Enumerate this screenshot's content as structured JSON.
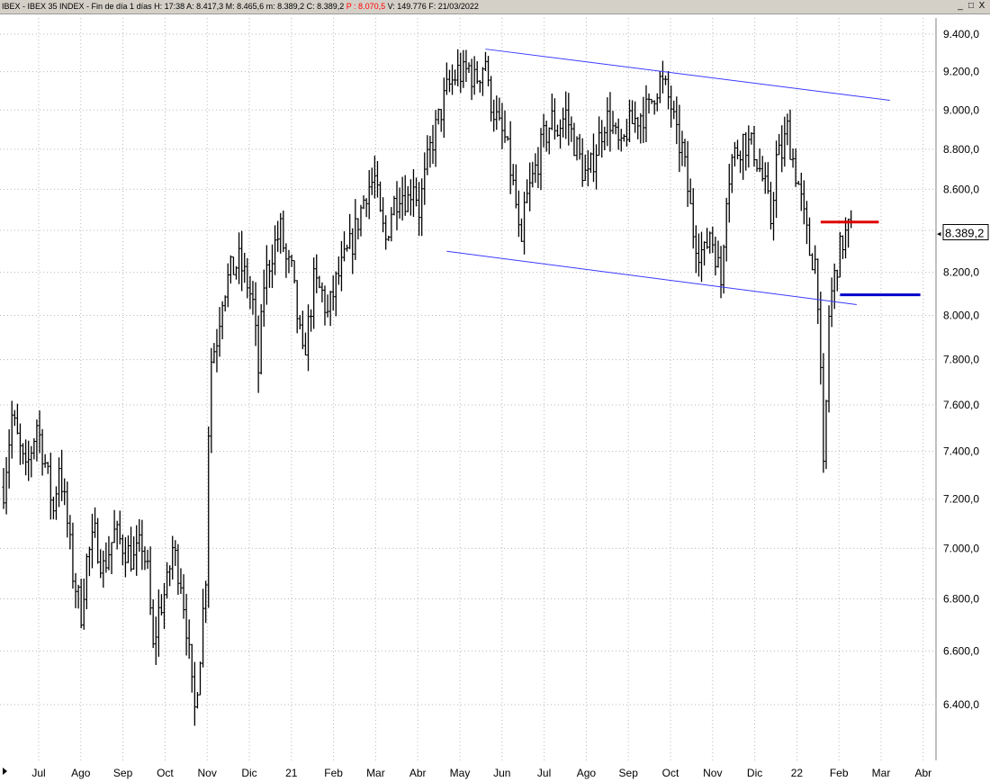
{
  "window": {
    "title_parts": {
      "prefix": " IBEX - IBEX 35 INDEX - Fin de día 1 días  H: 17:38  A: 8.417,3  M: 8.465,6  m: 8.389,2  C: 8.389,2  ",
      "p_value": "P : 8.070,5",
      "suffix": "  V: 149.776  F: 21/03/2022"
    },
    "buttons": {
      "minimize": "_",
      "maximize": "□",
      "close": "X"
    },
    "marker_icon": "right-triangle-icon"
  },
  "chart_data": {
    "type": "ohlc",
    "y_axis": {
      "ticks": [
        "9.400,0",
        "9.200,0",
        "9.000,0",
        "8.800,0",
        "8.600,0",
        "8.400,0",
        "8.200,0",
        "8.000,0",
        "7.800,0",
        "7.600,0",
        "7.400,0",
        "7.200,0",
        "7.000,0",
        "6.800,0",
        "6.600,0",
        "6.400,0"
      ],
      "log_scale": true,
      "range": [
        6300,
        9450
      ],
      "last_price_label": "8.389,2"
    },
    "x_axis": {
      "labels": [
        "Jul",
        "Ago",
        "Sep",
        "Oct",
        "Nov",
        "Dic",
        "21",
        "Feb",
        "Mar",
        "Abr",
        "May",
        "Jun",
        "Jul",
        "Ago",
        "Sep",
        "Oct",
        "Nov",
        "Dic",
        "22",
        "Feb",
        "Mar",
        "Abr"
      ]
    },
    "grid": true,
    "price_path": [
      [
        0,
        7250
      ],
      [
        3,
        7550
      ],
      [
        6,
        7400
      ],
      [
        8,
        7300
      ],
      [
        12,
        7520
      ],
      [
        15,
        7350
      ],
      [
        18,
        7150
      ],
      [
        20,
        7350
      ],
      [
        23,
        7100
      ],
      [
        25,
        6900
      ],
      [
        28,
        6750
      ],
      [
        30,
        6950
      ],
      [
        33,
        7050
      ],
      [
        36,
        6920
      ],
      [
        40,
        7060
      ],
      [
        44,
        7000
      ],
      [
        47,
        6950
      ],
      [
        50,
        7020
      ],
      [
        52,
        6900
      ],
      [
        54,
        6600
      ],
      [
        56,
        6750
      ],
      [
        59,
        6850
      ],
      [
        61,
        7000
      ],
      [
        64,
        6880
      ],
      [
        66,
        6700
      ],
      [
        68,
        6450
      ],
      [
        69,
        6380
      ],
      [
        71,
        6600
      ],
      [
        73,
        6900
      ],
      [
        74,
        7500
      ],
      [
        75,
        7800
      ],
      [
        77,
        7900
      ],
      [
        79,
        8100
      ],
      [
        82,
        8200
      ],
      [
        85,
        8250
      ],
      [
        88,
        8150
      ],
      [
        90,
        8050
      ],
      [
        92,
        7750
      ],
      [
        94,
        8150
      ],
      [
        97,
        8300
      ],
      [
        100,
        8400
      ],
      [
        102,
        8250
      ],
      [
        104,
        8200
      ],
      [
        106,
        8000
      ],
      [
        108,
        7800
      ],
      [
        110,
        7950
      ],
      [
        112,
        8150
      ],
      [
        115,
        8100
      ],
      [
        117,
        8000
      ],
      [
        120,
        8150
      ],
      [
        123,
        8250
      ],
      [
        126,
        8350
      ],
      [
        128,
        8450
      ],
      [
        131,
        8600
      ],
      [
        134,
        8650
      ],
      [
        136,
        8450
      ],
      [
        138,
        8350
      ],
      [
        140,
        8500
      ],
      [
        143,
        8600
      ],
      [
        146,
        8550
      ],
      [
        148,
        8650
      ],
      [
        150,
        8500
      ],
      [
        152,
        8650
      ],
      [
        154,
        8800
      ],
      [
        157,
        8950
      ],
      [
        160,
        9100
      ],
      [
        162,
        9150
      ],
      [
        164,
        9200
      ],
      [
        166,
        9180
      ],
      [
        168,
        9220
      ],
      [
        170,
        9150
      ],
      [
        172,
        9200
      ],
      [
        174,
        9270
      ],
      [
        175,
        9100
      ],
      [
        177,
        9000
      ],
      [
        179,
        8900
      ],
      [
        181,
        8850
      ],
      [
        183,
        8700
      ],
      [
        185,
        8520
      ],
      [
        186,
        8380
      ],
      [
        187,
        8280
      ],
      [
        188,
        8500
      ],
      [
        190,
        8600
      ],
      [
        192,
        8700
      ],
      [
        195,
        8850
      ],
      [
        198,
        8950
      ],
      [
        200,
        8900
      ],
      [
        203,
        8980
      ],
      [
        205,
        8880
      ],
      [
        207,
        8800
      ],
      [
        209,
        8700
      ],
      [
        211,
        8650
      ],
      [
        213,
        8760
      ],
      [
        215,
        8850
      ],
      [
        217,
        8950
      ],
      [
        219,
        8950
      ],
      [
        221,
        8850
      ],
      [
        223,
        8780
      ],
      [
        225,
        8900
      ],
      [
        228,
        8950
      ],
      [
        230,
        8980
      ],
      [
        233,
        9000
      ],
      [
        235,
        9100
      ],
      [
        237,
        9150
      ],
      [
        239,
        9100
      ],
      [
        241,
        9020
      ],
      [
        243,
        8850
      ],
      [
        245,
        8800
      ],
      [
        247,
        8600
      ],
      [
        249,
        8400
      ],
      [
        251,
        8320
      ],
      [
        253,
        8280
      ],
      [
        255,
        8400
      ],
      [
        257,
        8300
      ],
      [
        259,
        8150
      ],
      [
        261,
        8600
      ],
      [
        263,
        8750
      ],
      [
        265,
        8800
      ],
      [
        267,
        8850
      ],
      [
        269,
        8820
      ],
      [
        271,
        8800
      ],
      [
        273,
        8700
      ],
      [
        275,
        8600
      ],
      [
        277,
        8450
      ],
      [
        279,
        8750
      ],
      [
        281,
        8780
      ],
      [
        283,
        8900
      ],
      [
        285,
        8750
      ],
      [
        287,
        8620
      ],
      [
        289,
        8450
      ],
      [
        291,
        8300
      ],
      [
        293,
        8250
      ],
      [
        294,
        8100
      ],
      [
        295,
        7700
      ],
      [
        296,
        7300
      ],
      [
        297,
        7600
      ],
      [
        298,
        8000
      ],
      [
        299,
        8100
      ],
      [
        301,
        8250
      ],
      [
        303,
        8350
      ],
      [
        305,
        8400
      ],
      [
        306,
        8389
      ]
    ],
    "trendlines": [
      {
        "from": [
          174,
          9320
        ],
        "to": [
          320,
          9050
        ],
        "color": "#3a3aff"
      },
      {
        "from": [
          160,
          8300
        ],
        "to": [
          308,
          8050
        ],
        "color": "#3a3aff"
      }
    ],
    "levels": [
      {
        "from": 295,
        "to": 316,
        "value": 8440,
        "color": "#e00000",
        "width": 3
      },
      {
        "from": 302,
        "to": 331,
        "value": 8095,
        "color": "#0000cc",
        "width": 3
      }
    ]
  }
}
